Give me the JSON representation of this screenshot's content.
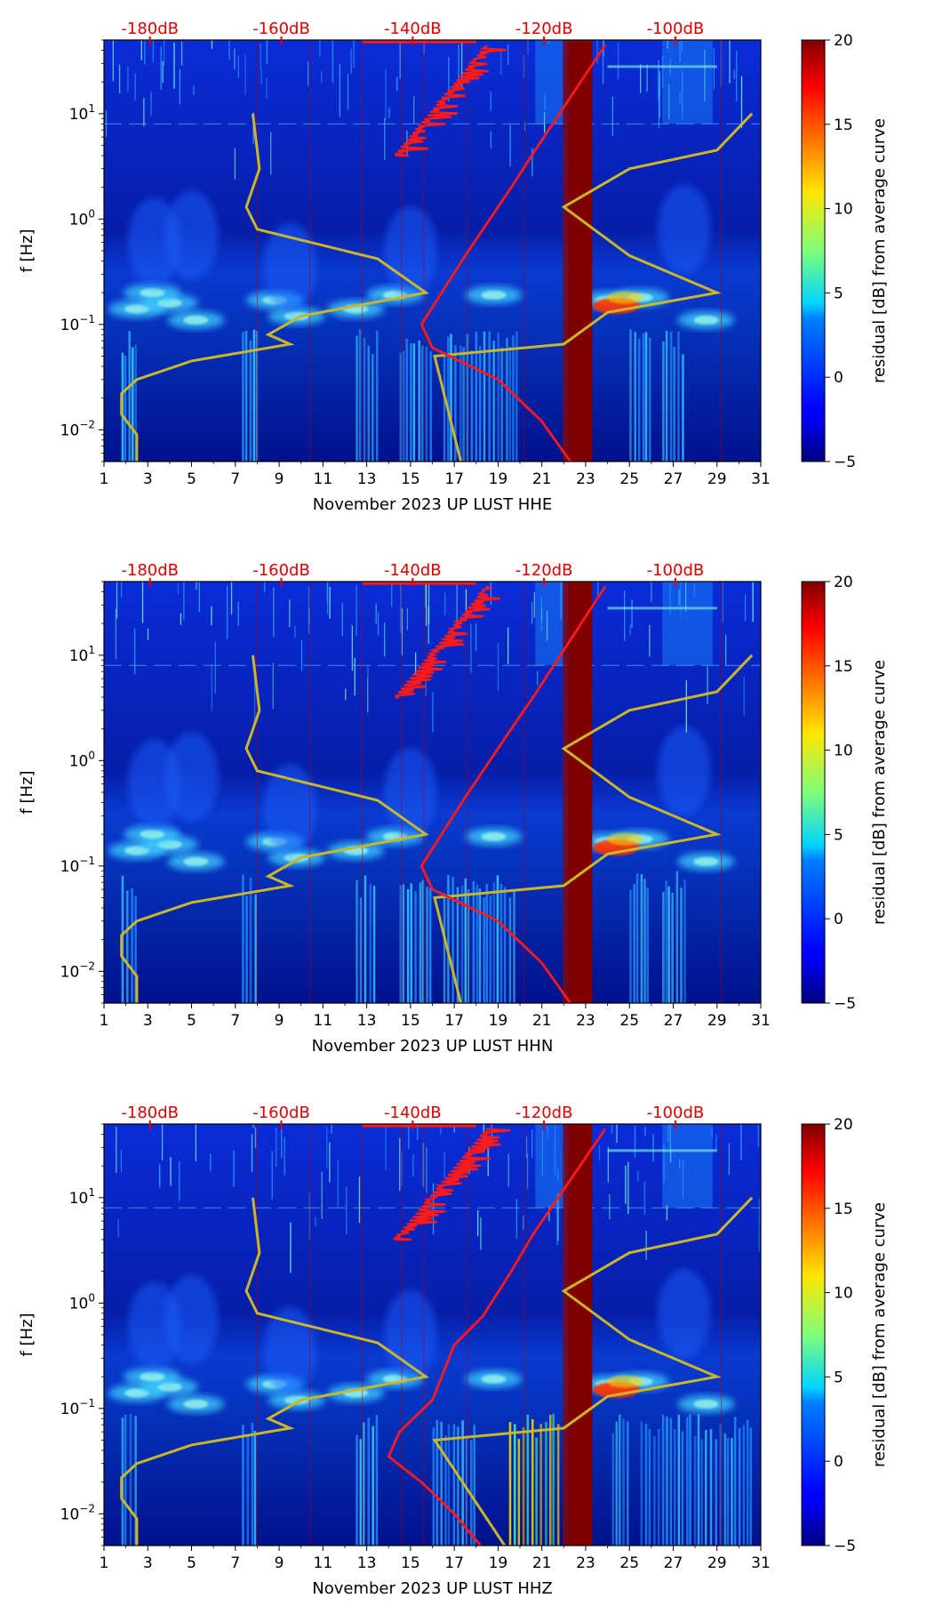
{
  "chart_data": [
    {
      "type": "heatmap",
      "title": "November 2023 UP LUST  HHE",
      "xlabel": "November 2023 UP LUST  HHE",
      "ylabel": "f [Hz]",
      "colorbar_label": "residual [dB] from average curve",
      "xlim": [
        1,
        31
      ],
      "ylim": [
        0.005,
        50
      ],
      "yscale": "log",
      "x_ticks": [
        "1",
        "3",
        "5",
        "7",
        "9",
        "11",
        "13",
        "15",
        "17",
        "19",
        "21",
        "23",
        "25",
        "27",
        "29",
        "31"
      ],
      "y_ticks": [
        {
          "label": "10",
          "exp": "−2",
          "value": 0.01
        },
        {
          "label": "10",
          "exp": "−1",
          "value": 0.1
        },
        {
          "label": "10",
          "exp": "0",
          "value": 1
        },
        {
          "label": "10",
          "exp": "1",
          "value": 10
        }
      ],
      "colorbar_ticks": [
        "20",
        "15",
        "10",
        "5",
        "0",
        "−5"
      ],
      "colorbar_range": [
        -5,
        20
      ],
      "top_db_labels": [
        "-180dB",
        "-160dB",
        "-140dB",
        "-120dB",
        "-100dB"
      ],
      "saturated_band": [
        22.2,
        23.3
      ],
      "red_curve": {
        "name": "median PSD (top dB scale)",
        "points": [
          [
            23.9,
            45
          ],
          [
            20.6,
            4.2
          ],
          [
            19.6,
            2
          ],
          [
            17.5,
            0.45
          ],
          [
            15.5,
            0.1
          ],
          [
            16,
            0.06
          ],
          [
            19,
            0.03
          ],
          [
            21,
            0.012
          ],
          [
            22.3,
            0.005
          ]
        ]
      },
      "yellow_curve": {
        "name": "model curve",
        "points": [
          [
            7.8,
            10
          ],
          [
            8.1,
            3
          ],
          [
            7.5,
            1.3
          ],
          [
            8,
            0.8
          ],
          [
            13.5,
            0.42
          ],
          [
            15.7,
            0.2
          ],
          [
            10,
            0.12
          ],
          [
            8.5,
            0.08
          ],
          [
            9.5,
            0.065
          ],
          [
            5,
            0.045
          ],
          [
            2.5,
            0.03
          ],
          [
            1.8,
            0.022
          ],
          [
            1.8,
            0.014
          ],
          [
            2.5,
            0.009
          ],
          [
            2.5,
            0.005
          ]
        ]
      },
      "yellow_curve_right": {
        "points": [
          [
            17.3,
            0.005
          ],
          [
            16.1,
            0.05
          ],
          [
            22,
            0.065
          ],
          [
            24,
            0.13
          ],
          [
            29,
            0.2
          ],
          [
            25,
            0.45
          ],
          [
            22,
            1.3
          ],
          [
            25,
            3
          ],
          [
            29,
            4.5
          ],
          [
            30.6,
            10
          ]
        ]
      }
    },
    {
      "type": "heatmap",
      "title": "November 2023 UP LUST  HHN",
      "xlabel": "November 2023 UP LUST  HHN",
      "ylabel": "f [Hz]",
      "colorbar_label": "residual [dB] from average curve",
      "xlim": [
        1,
        31
      ],
      "ylim": [
        0.005,
        50
      ],
      "yscale": "log",
      "x_ticks": [
        "1",
        "3",
        "5",
        "7",
        "9",
        "11",
        "13",
        "15",
        "17",
        "19",
        "21",
        "23",
        "25",
        "27",
        "29",
        "31"
      ],
      "y_ticks": [
        {
          "label": "10",
          "exp": "−2",
          "value": 0.01
        },
        {
          "label": "10",
          "exp": "−1",
          "value": 0.1
        },
        {
          "label": "10",
          "exp": "0",
          "value": 1
        },
        {
          "label": "10",
          "exp": "1",
          "value": 10
        }
      ],
      "colorbar_ticks": [
        "20",
        "15",
        "10",
        "5",
        "0",
        "−5"
      ],
      "colorbar_range": [
        -5,
        20
      ],
      "top_db_labels": [
        "-180dB",
        "-160dB",
        "-140dB",
        "-120dB",
        "-100dB"
      ],
      "saturated_band": [
        22.2,
        23.3
      ],
      "red_curve": {
        "name": "median PSD (top dB scale)",
        "points": [
          [
            23.9,
            45
          ],
          [
            20.6,
            4
          ],
          [
            19.6,
            2
          ],
          [
            17.5,
            0.45
          ],
          [
            15.5,
            0.1
          ],
          [
            16,
            0.06
          ],
          [
            19,
            0.03
          ],
          [
            21,
            0.012
          ],
          [
            22.3,
            0.005
          ]
        ]
      },
      "yellow_curve": {
        "name": "model curve",
        "points": [
          [
            7.8,
            10
          ],
          [
            8.1,
            3
          ],
          [
            7.5,
            1.3
          ],
          [
            8,
            0.8
          ],
          [
            13.5,
            0.42
          ],
          [
            15.7,
            0.2
          ],
          [
            10,
            0.12
          ],
          [
            8.5,
            0.08
          ],
          [
            9.5,
            0.065
          ],
          [
            5,
            0.045
          ],
          [
            2.5,
            0.03
          ],
          [
            1.8,
            0.022
          ],
          [
            1.8,
            0.014
          ],
          [
            2.5,
            0.009
          ],
          [
            2.5,
            0.005
          ]
        ]
      },
      "yellow_curve_right": {
        "points": [
          [
            17.3,
            0.005
          ],
          [
            16.1,
            0.05
          ],
          [
            22,
            0.065
          ],
          [
            24,
            0.13
          ],
          [
            29,
            0.2
          ],
          [
            25,
            0.45
          ],
          [
            22,
            1.3
          ],
          [
            25,
            3
          ],
          [
            29,
            4.5
          ],
          [
            30.6,
            10
          ]
        ]
      }
    },
    {
      "type": "heatmap",
      "title": "November 2023 UP LUST  HHZ",
      "xlabel": "November 2023 UP LUST  HHZ",
      "ylabel": "f [Hz]",
      "colorbar_label": "residual [dB] from average curve",
      "xlim": [
        1,
        31
      ],
      "ylim": [
        0.005,
        50
      ],
      "yscale": "log",
      "x_ticks": [
        "1",
        "3",
        "5",
        "7",
        "9",
        "11",
        "13",
        "15",
        "17",
        "19",
        "21",
        "23",
        "25",
        "27",
        "29",
        "31"
      ],
      "y_ticks": [
        {
          "label": "10",
          "exp": "−2",
          "value": 0.01
        },
        {
          "label": "10",
          "exp": "−1",
          "value": 0.1
        },
        {
          "label": "10",
          "exp": "0",
          "value": 1
        },
        {
          "label": "10",
          "exp": "1",
          "value": 10
        }
      ],
      "colorbar_ticks": [
        "20",
        "15",
        "10",
        "5",
        "0",
        "−5"
      ],
      "colorbar_range": [
        -5,
        20
      ],
      "top_db_labels": [
        "-180dB",
        "-160dB",
        "-140dB",
        "-120dB",
        "-100dB"
      ],
      "saturated_band": [
        22.2,
        23.3
      ],
      "red_curve": {
        "name": "median PSD (top dB scale)",
        "points": [
          [
            23.9,
            45
          ],
          [
            20.6,
            4.5
          ],
          [
            19.6,
            2
          ],
          [
            18.3,
            0.75
          ],
          [
            17,
            0.4
          ],
          [
            16,
            0.12
          ],
          [
            14.5,
            0.06
          ],
          [
            14,
            0.035
          ],
          [
            15.5,
            0.02
          ],
          [
            17,
            0.01
          ],
          [
            18.2,
            0.005
          ]
        ]
      },
      "yellow_curve": {
        "name": "model curve",
        "points": [
          [
            7.8,
            10
          ],
          [
            8.1,
            3
          ],
          [
            7.5,
            1.3
          ],
          [
            8,
            0.8
          ],
          [
            13.5,
            0.42
          ],
          [
            15.7,
            0.2
          ],
          [
            10,
            0.12
          ],
          [
            8.5,
            0.08
          ],
          [
            9.5,
            0.065
          ],
          [
            5,
            0.045
          ],
          [
            2.5,
            0.03
          ],
          [
            1.8,
            0.022
          ],
          [
            1.8,
            0.014
          ],
          [
            2.5,
            0.009
          ],
          [
            2.5,
            0.005
          ]
        ]
      },
      "yellow_curve_right": {
        "points": [
          [
            19.3,
            0.005
          ],
          [
            16.1,
            0.05
          ],
          [
            22,
            0.065
          ],
          [
            24,
            0.13
          ],
          [
            29,
            0.2
          ],
          [
            25,
            0.45
          ],
          [
            22,
            1.3
          ],
          [
            25,
            3
          ],
          [
            29,
            4.5
          ],
          [
            30.6,
            10
          ]
        ]
      }
    }
  ]
}
